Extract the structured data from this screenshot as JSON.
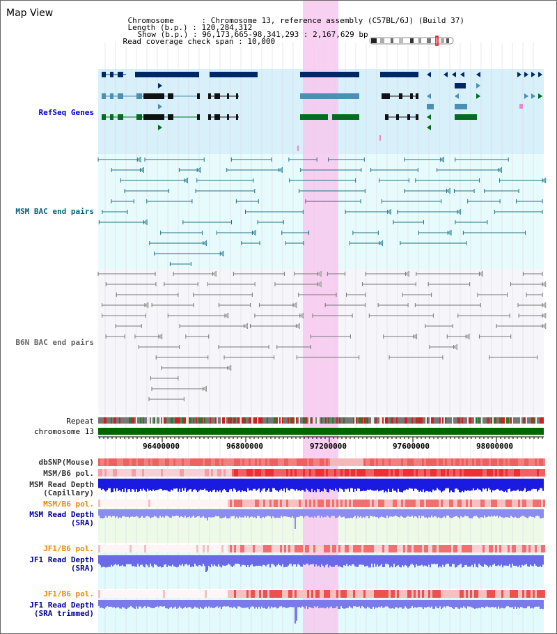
{
  "view_title": "Map View",
  "header": {
    "chromosome_label": "Chromosome",
    "chromosome_value": "Chromosome 13, reference assembly (C57BL/6J) (Build 37)",
    "length_label": "Length (b.p.)",
    "length_value": "120,284,312",
    "show_label": "Show (b.p.)",
    "show_value": "96,173,665-98,341,293 : 2,167,629 bp",
    "coverage_label": "Read coverage check span",
    "coverage_value": "10,000"
  },
  "tracks": {
    "refseq": "RefSeq Genes",
    "msm_bac": "MSM BAC end pairs",
    "b6n_bac": "B6N BAC end pairs",
    "repeat": "Repeat",
    "chromosome": "chromosome 13",
    "dbsnp": "dbSNP(Mouse)",
    "msm_b6_pol_1": "MSM/B6 pol.",
    "msm_depth_cap_1": "MSM Read Depth",
    "msm_depth_cap_2": "(Capillary)",
    "msm_b6_pol_2": "MSM/B6 pol.",
    "msm_depth_sra_1": "MSM Read Depth",
    "msm_depth_sra_2": "(SRA)",
    "jf1_b6_pol_1": "JF1/B6 pol.",
    "jf1_depth_sra_1": "JF1 Read Depth",
    "jf1_depth_sra_2": "(SRA)",
    "jf1_b6_pol_2": "JF1/B6 pol.",
    "jf1_depth_trim_1": "JF1 Read Depth",
    "jf1_depth_trim_2": "(SRA trimmed)"
  },
  "axis_ticks": [
    "96400000",
    "96800000",
    "97200000",
    "97600000",
    "98000000"
  ],
  "colors": {
    "refseq_label": "#0000cc",
    "msm_bac_label": "#006677",
    "b6n_bac_label": "#666666",
    "pol_label_orange": "#ee8800",
    "depth_label_blue": "#000099",
    "highlight": "#f7c8ef",
    "chromosome_bar": "#006600"
  }
}
